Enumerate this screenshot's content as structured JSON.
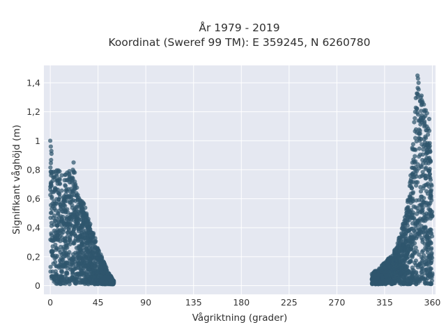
{
  "chart_data": {
    "type": "scatter",
    "title": [
      "År 1979 - 2019",
      "Koordinat (Sweref 99 TM): E 359245, N 6260780"
    ],
    "xlabel": "Vågriktning (grader)",
    "ylabel": "Signifikant våghöjd (m)",
    "xlim": [
      -6,
      363
    ],
    "ylim": [
      -0.06,
      1.52
    ],
    "x_ticks": [
      0,
      45,
      90,
      135,
      180,
      225,
      270,
      315,
      360
    ],
    "x_tick_labels": [
      "0",
      "45",
      "90",
      "135",
      "180",
      "225",
      "270",
      "315",
      "360"
    ],
    "y_ticks": [
      0,
      0.2,
      0.4,
      0.6,
      0.8,
      1.0,
      1.2,
      1.4
    ],
    "y_tick_labels": [
      "0",
      "0,2",
      "0,4",
      "0,6",
      "0,8",
      "1",
      "1,2",
      "1,4"
    ],
    "grid": true,
    "legend": "none",
    "colors": {
      "marker": "#2f566e",
      "plot_background": "#e5e8f1",
      "grid": "#ffffff"
    },
    "series": [
      {
        "clusters": [
          {
            "direction_range": [
              0,
              60
            ],
            "envelope": [
              [
                0,
                1.0
              ],
              [
                0.5,
                0.95
              ],
              [
                2,
                0.86
              ],
              [
                5,
                0.83
              ],
              [
                10,
                0.79
              ],
              [
                15,
                0.77
              ],
              [
                20,
                0.78
              ],
              [
                22,
                0.84
              ],
              [
                25,
                0.7
              ],
              [
                30,
                0.6
              ],
              [
                35,
                0.5
              ],
              [
                40,
                0.38
              ],
              [
                45,
                0.27
              ],
              [
                50,
                0.17
              ],
              [
                55,
                0.09
              ],
              [
                60,
                0.03
              ]
            ]
          },
          {
            "direction_range": [
              303,
              360
            ],
            "envelope": [
              [
                303,
                0.09
              ],
              [
                310,
                0.12
              ],
              [
                315,
                0.16
              ],
              [
                320,
                0.2
              ],
              [
                325,
                0.26
              ],
              [
                330,
                0.36
              ],
              [
                335,
                0.5
              ],
              [
                340,
                0.8
              ],
              [
                343,
                1.2
              ],
              [
                345,
                1.37
              ],
              [
                346,
                1.45
              ],
              [
                348,
                1.4
              ],
              [
                350,
                1.32
              ],
              [
                352,
                1.26
              ],
              [
                355,
                1.18
              ],
              [
                357,
                1.13
              ],
              [
                358,
                0.95
              ],
              [
                359,
                0.8
              ],
              [
                360,
                0.58
              ]
            ]
          }
        ],
        "outliers": [
          [
            0,
            1.0
          ],
          [
            0.5,
            0.96
          ],
          [
            1,
            0.93
          ],
          [
            22,
            0.85
          ],
          [
            18,
            0.79
          ],
          [
            22,
            0.78
          ],
          [
            16,
            0.78
          ],
          [
            303,
            0.08
          ],
          [
            306,
            0.07
          ],
          [
            312,
            0.11
          ],
          [
            346,
            1.45
          ],
          [
            347,
            1.4
          ],
          [
            349,
            1.3
          ],
          [
            350,
            1.28
          ],
          [
            352,
            1.25
          ],
          [
            355,
            1.19
          ],
          [
            357,
            1.15
          ]
        ]
      }
    ]
  }
}
